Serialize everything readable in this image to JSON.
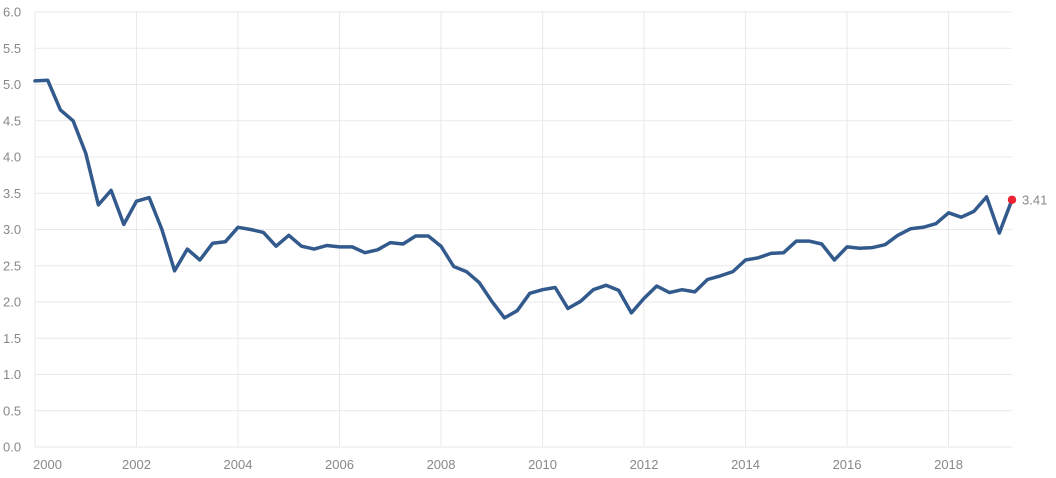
{
  "chart_data": {
    "type": "line",
    "title": "",
    "xlabel": "",
    "ylabel": "",
    "xlim": [
      2000,
      2019.25
    ],
    "ylim": [
      0,
      6
    ],
    "grid": true,
    "legend": "none",
    "x_ticks": [
      "2000",
      "2002",
      "2004",
      "2006",
      "2008",
      "2010",
      "2012",
      "2014",
      "2016",
      "2018"
    ],
    "y_ticks": [
      "0.0",
      "0.5",
      "1.0",
      "1.5",
      "2.0",
      "2.5",
      "3.0",
      "3.5",
      "4.0",
      "4.5",
      "5.0",
      "5.5",
      "6.0"
    ],
    "series": [
      {
        "color": "#335a8c",
        "x": [
          2000.0,
          2000.25,
          2000.5,
          2000.75,
          2001.0,
          2001.25,
          2001.5,
          2001.75,
          2002.0,
          2002.25,
          2002.5,
          2002.75,
          2003.0,
          2003.25,
          2003.5,
          2003.75,
          2004.0,
          2004.25,
          2004.5,
          2004.75,
          2005.0,
          2005.25,
          2005.5,
          2005.75,
          2006.0,
          2006.25,
          2006.5,
          2006.75,
          2007.0,
          2007.25,
          2007.5,
          2007.75,
          2008.0,
          2008.25,
          2008.5,
          2008.75,
          2009.0,
          2009.25,
          2009.5,
          2009.75,
          2010.0,
          2010.25,
          2010.5,
          2010.75,
          2011.0,
          2011.25,
          2011.5,
          2011.75,
          2012.0,
          2012.25,
          2012.5,
          2012.75,
          2013.0,
          2013.25,
          2013.5,
          2013.75,
          2014.0,
          2014.25,
          2014.5,
          2014.75,
          2015.0,
          2015.25,
          2015.5,
          2015.75,
          2016.0,
          2016.25,
          2016.5,
          2016.75,
          2017.0,
          2017.25,
          2017.5,
          2017.75,
          2018.0,
          2018.25,
          2018.5,
          2018.75,
          2019.0,
          2019.25
        ],
        "y": [
          5.05,
          5.06,
          4.65,
          4.5,
          4.05,
          3.34,
          3.54,
          3.07,
          3.39,
          3.44,
          3.0,
          2.43,
          2.73,
          2.58,
          2.81,
          2.83,
          3.03,
          3.0,
          2.96,
          2.77,
          2.92,
          2.77,
          2.73,
          2.78,
          2.76,
          2.76,
          2.68,
          2.72,
          2.82,
          2.8,
          2.91,
          2.91,
          2.77,
          2.49,
          2.42,
          2.27,
          2.01,
          1.78,
          1.88,
          2.12,
          2.17,
          2.2,
          1.91,
          2.01,
          2.17,
          2.23,
          2.16,
          1.85,
          2.05,
          2.22,
          2.13,
          2.17,
          2.14,
          2.31,
          2.36,
          2.42,
          2.58,
          2.61,
          2.67,
          2.68,
          2.84,
          2.84,
          2.8,
          2.58,
          2.76,
          2.74,
          2.75,
          2.79,
          2.92,
          3.01,
          3.03,
          3.08,
          3.23,
          3.17,
          3.25,
          3.45,
          2.95,
          3.41
        ]
      }
    ],
    "last_point": {
      "x": 2019.25,
      "y": 3.41,
      "label": "3.41",
      "color": "#ee2233"
    }
  }
}
